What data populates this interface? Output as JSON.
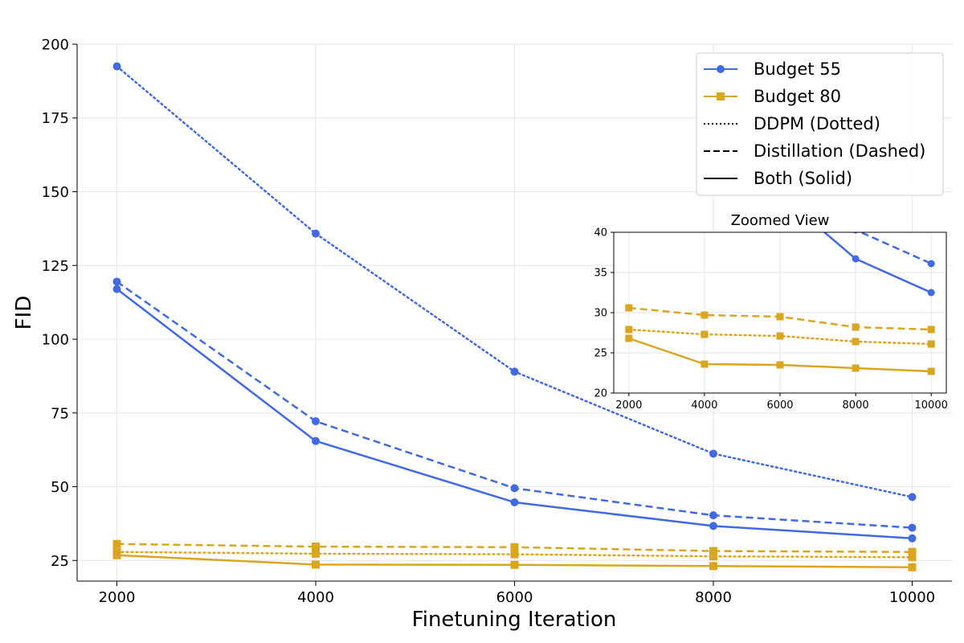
{
  "chart_data": {
    "type": "line",
    "title": "",
    "xlabel": "Finetuning Iteration",
    "ylabel": "FID",
    "x": [
      2000,
      4000,
      6000,
      8000,
      10000
    ],
    "xlim": [
      1600,
      10400
    ],
    "ylim": [
      18,
      200
    ],
    "xticks": [
      2000,
      4000,
      6000,
      8000,
      10000
    ],
    "yticks": [
      25,
      50,
      75,
      100,
      125,
      150,
      175,
      200
    ],
    "grid": true,
    "legend_position": "top-right",
    "colors": {
      "budget55": "#4169E1",
      "budget80": "#DAA520"
    },
    "series": [
      {
        "name": "Budget 55 - DDPM",
        "budget": "55",
        "style": "dotted",
        "marker": "circle",
        "color": "#4169E1",
        "values": [
          192.5,
          135.8,
          89.0,
          61.2,
          46.5
        ]
      },
      {
        "name": "Budget 55 - Distillation",
        "budget": "55",
        "style": "dashed",
        "marker": "circle",
        "color": "#4169E1",
        "values": [
          119.5,
          72.2,
          49.5,
          40.3,
          36.1
        ]
      },
      {
        "name": "Budget 55 - Both",
        "budget": "55",
        "style": "solid",
        "marker": "circle",
        "color": "#4169E1",
        "values": [
          117.0,
          65.5,
          44.7,
          36.7,
          32.5
        ]
      },
      {
        "name": "Budget 80 - DDPM",
        "budget": "80",
        "style": "dotted",
        "marker": "square",
        "color": "#DAA520",
        "values": [
          27.9,
          27.3,
          27.1,
          26.4,
          26.1
        ]
      },
      {
        "name": "Budget 80 - Distillation",
        "budget": "80",
        "style": "dashed",
        "marker": "square",
        "color": "#DAA520",
        "values": [
          30.6,
          29.7,
          29.5,
          28.2,
          27.9
        ]
      },
      {
        "name": "Budget 80 - Both",
        "budget": "80",
        "style": "solid",
        "marker": "square",
        "color": "#DAA520",
        "values": [
          26.8,
          23.6,
          23.5,
          23.1,
          22.7
        ]
      }
    ],
    "legend": [
      {
        "label": "Budget 55",
        "kind": "color",
        "color": "#4169E1",
        "marker": "circle",
        "style": "solid"
      },
      {
        "label": "Budget 80",
        "kind": "color",
        "color": "#DAA520",
        "marker": "square",
        "style": "solid"
      },
      {
        "label": "DDPM (Dotted)",
        "kind": "style",
        "color": "#000000",
        "marker": "none",
        "style": "dotted"
      },
      {
        "label": "Distillation (Dashed)",
        "kind": "style",
        "color": "#000000",
        "marker": "none",
        "style": "dashed"
      },
      {
        "label": "Both (Solid)",
        "kind": "style",
        "color": "#000000",
        "marker": "none",
        "style": "solid"
      }
    ],
    "inset": {
      "title": "Zoomed View",
      "xlim": [
        1600,
        10400
      ],
      "ylim": [
        20,
        40
      ],
      "xticks": [
        2000,
        4000,
        6000,
        8000,
        10000
      ],
      "yticks": [
        20,
        25,
        30,
        35,
        40
      ]
    }
  }
}
